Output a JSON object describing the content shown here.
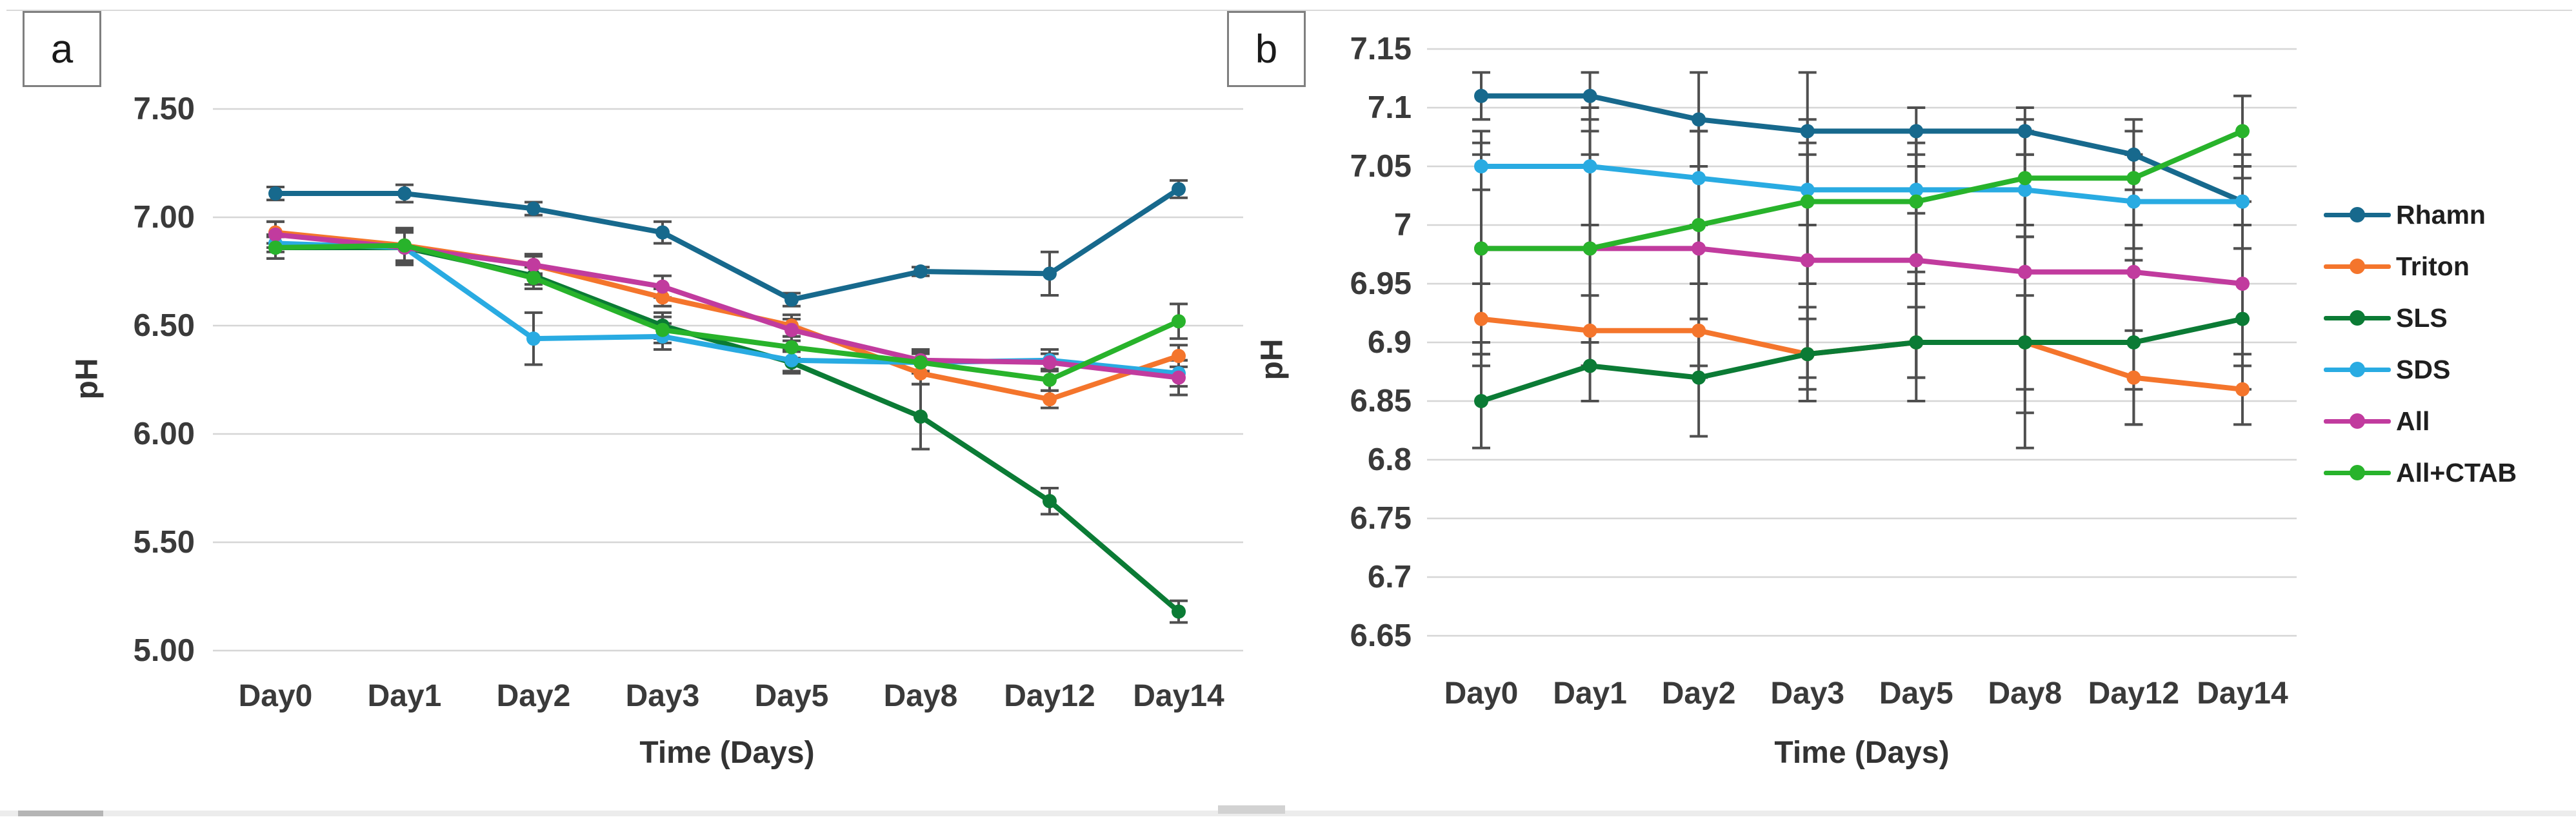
{
  "chart_data": [
    {
      "type": "line",
      "panel_label": "a",
      "ylabel": "pH",
      "xlabel": "Time (Days)",
      "categories": [
        "Day0",
        "Day1",
        "Day2",
        "Day3",
        "Day5",
        "Day8",
        "Day12",
        "Day14"
      ],
      "y_ticks": [
        "7.50",
        "7.00",
        "6.50",
        "6.00",
        "5.50",
        "5.00"
      ],
      "ylim": [
        5.0,
        7.5
      ],
      "grid": true,
      "error_bar_color": "#4f4f4f",
      "series": [
        {
          "name": "Rhamn",
          "color": "#17698d",
          "values": [
            7.11,
            7.11,
            7.04,
            6.93,
            6.62,
            6.75,
            6.74,
            7.13
          ],
          "errors": [
            0.03,
            0.04,
            0.03,
            0.05,
            0.03,
            0.02,
            0.1,
            0.04
          ]
        },
        {
          "name": "Triton",
          "color": "#f4752c",
          "values": [
            6.93,
            6.87,
            6.78,
            6.63,
            6.5,
            6.28,
            6.16,
            6.36
          ],
          "errors": [
            0.05,
            0.08,
            0.04,
            0.04,
            0.05,
            0.05,
            0.04,
            0.05
          ]
        },
        {
          "name": "SLS",
          "color": "#0b7b35",
          "values": [
            6.86,
            6.86,
            6.73,
            6.5,
            6.33,
            6.08,
            5.69,
            5.18
          ],
          "errors": [
            0.05,
            0.07,
            0.04,
            0.06,
            0.05,
            0.15,
            0.06,
            0.05
          ]
        },
        {
          "name": "SDS",
          "color": "#29abe2",
          "values": [
            6.88,
            6.86,
            6.44,
            6.45,
            6.34,
            6.33,
            6.34,
            6.28
          ],
          "errors": [
            0.04,
            0.08,
            0.12,
            0.06,
            0.05,
            0.04,
            0.05,
            0.06
          ]
        },
        {
          "name": "All",
          "color": "#c13b9e",
          "values": [
            6.92,
            6.86,
            6.78,
            6.68,
            6.48,
            6.34,
            6.33,
            6.26
          ],
          "errors": [
            0.06,
            0.07,
            0.05,
            0.05,
            0.05,
            0.05,
            0.04,
            0.08
          ]
        },
        {
          "name": "All+CTAB",
          "color": "#28b32b",
          "values": [
            6.86,
            6.87,
            6.72,
            6.48,
            6.4,
            6.33,
            6.25,
            6.52
          ],
          "errors": [
            0.05,
            0.07,
            0.05,
            0.06,
            0.05,
            0.05,
            0.05,
            0.08
          ]
        }
      ]
    },
    {
      "type": "line",
      "panel_label": "b",
      "ylabel": "pH",
      "xlabel": "Time (Days)",
      "categories": [
        "Day0",
        "Day1",
        "Day2",
        "Day3",
        "Day5",
        "Day8",
        "Day12",
        "Day14"
      ],
      "y_ticks": [
        "7.15",
        "7.1",
        "7.05",
        "7",
        "6.95",
        "6.9",
        "6.85",
        "6.8",
        "6.75",
        "6.7",
        "6.65"
      ],
      "ylim": [
        6.65,
        7.15
      ],
      "grid": true,
      "legend_position": "right",
      "error_bar_color": "#4f4f4f",
      "series": [
        {
          "name": "Rhamn",
          "color": "#17698d",
          "values": [
            7.11,
            7.11,
            7.09,
            7.08,
            7.08,
            7.08,
            7.06,
            7.02
          ],
          "errors": [
            0.02,
            0.02,
            0.04,
            0.05,
            0.02,
            0.02,
            0.03,
            0.02
          ]
        },
        {
          "name": "Triton",
          "color": "#f4752c",
          "values": [
            6.92,
            6.91,
            6.91,
            6.89,
            6.9,
            6.9,
            6.87,
            6.86
          ],
          "errors": [
            0.03,
            0.03,
            0.04,
            0.03,
            0.03,
            0.04,
            0.04,
            0.03
          ]
        },
        {
          "name": "SLS",
          "color": "#0b7b35",
          "values": [
            6.85,
            6.88,
            6.87,
            6.89,
            6.9,
            6.9,
            6.9,
            6.92
          ],
          "errors": [
            0.04,
            0.03,
            0.05,
            0.04,
            0.05,
            0.09,
            0.07,
            0.06
          ]
        },
        {
          "name": "SDS",
          "color": "#29abe2",
          "values": [
            7.05,
            7.05,
            7.04,
            7.03,
            7.03,
            7.03,
            7.02,
            7.02
          ],
          "errors": [
            0.02,
            0.05,
            0.04,
            0.03,
            0.02,
            0.03,
            0.04,
            0.04
          ]
        },
        {
          "name": "All",
          "color": "#c13b9e",
          "values": [
            6.98,
            6.98,
            6.98,
            6.97,
            6.97,
            6.96,
            6.96,
            6.95
          ],
          "errors": [
            0.1,
            0.1,
            0.1,
            0.1,
            0.1,
            0.12,
            0.1,
            0.07
          ]
        },
        {
          "name": "All+CTAB",
          "color": "#28b32b",
          "values": [
            6.98,
            6.98,
            7.0,
            7.02,
            7.02,
            7.04,
            7.04,
            7.08
          ],
          "errors": [
            0.08,
            0.08,
            0.08,
            0.07,
            0.06,
            0.05,
            0.04,
            0.03
          ]
        }
      ]
    }
  ],
  "legend": {
    "entries": [
      "Rhamn",
      "Triton",
      "SLS",
      "SDS",
      "All",
      "All+CTAB"
    ]
  }
}
